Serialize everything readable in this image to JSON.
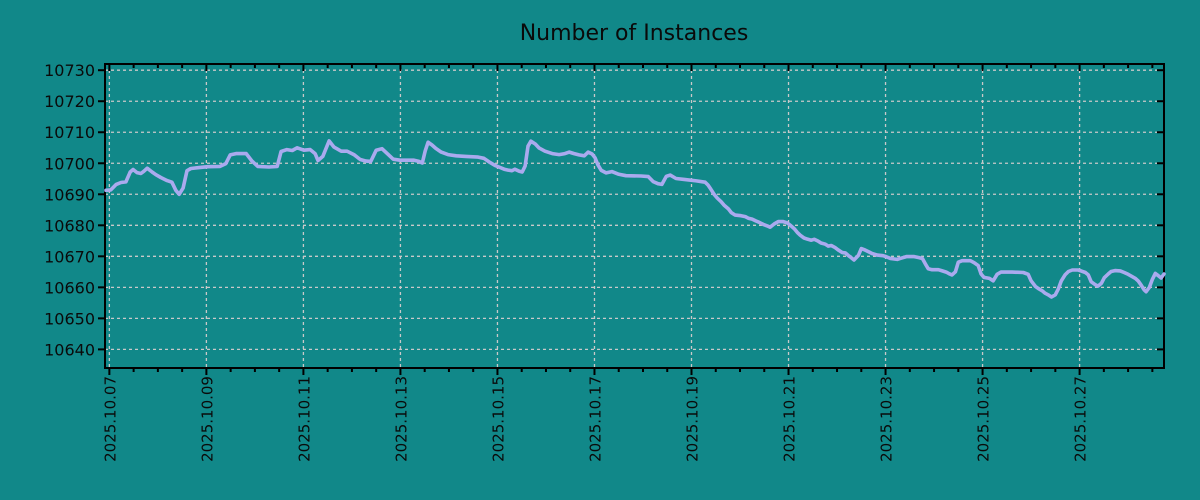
{
  "chart_data": {
    "type": "line",
    "title": "Number of Instances",
    "xlabel": "",
    "ylabel": "",
    "legend": "none",
    "grid": true,
    "background_color": "#118889",
    "line_color": "#aaaaee",
    "grid_color": "#c9c9c9",
    "axis_color": "#000000",
    "text_color": "#0a0a0a",
    "ylim": [
      10634,
      10732
    ],
    "yticks": [
      10640,
      10650,
      10660,
      10670,
      10680,
      10690,
      10700,
      10710,
      10720,
      10730
    ],
    "x_range_days": [
      0,
      21.83
    ],
    "x_minor_tick_interval_days": 0.5,
    "x_tick_positions_days": [
      0.09,
      2.09,
      4.09,
      6.09,
      8.09,
      10.09,
      12.09,
      14.09,
      16.09,
      18.09,
      20.09
    ],
    "x_tick_labels": [
      "2025.10.07",
      "2025.10.09",
      "2025.10.11",
      "2025.10.13",
      "2025.10.15",
      "2025.10.17",
      "2025.10.19",
      "2025.10.21",
      "2025.10.23",
      "2025.10.25",
      "2025.10.27"
    ],
    "series": [
      {
        "name": "instances",
        "points": [
          [
            0.02,
            10691.3
          ],
          [
            0.12,
            10691.4
          ],
          [
            0.23,
            10693.2
          ],
          [
            0.33,
            10693.8
          ],
          [
            0.43,
            10694.0
          ],
          [
            0.52,
            10697.2
          ],
          [
            0.58,
            10698.0
          ],
          [
            0.66,
            10697.0
          ],
          [
            0.74,
            10696.7
          ],
          [
            0.8,
            10697.4
          ],
          [
            0.87,
            10698.4
          ],
          [
            0.97,
            10697.2
          ],
          [
            1.05,
            10696.3
          ],
          [
            1.15,
            10695.4
          ],
          [
            1.28,
            10694.4
          ],
          [
            1.38,
            10693.9
          ],
          [
            1.46,
            10691.3
          ],
          [
            1.53,
            10690.0
          ],
          [
            1.61,
            10692.0
          ],
          [
            1.69,
            10697.6
          ],
          [
            1.77,
            10698.3
          ],
          [
            1.94,
            10698.6
          ],
          [
            2.12,
            10698.9
          ],
          [
            2.37,
            10699.0
          ],
          [
            2.49,
            10699.9
          ],
          [
            2.58,
            10702.7
          ],
          [
            2.7,
            10703.1
          ],
          [
            2.91,
            10703.1
          ],
          [
            3.03,
            10700.7
          ],
          [
            3.15,
            10699.0
          ],
          [
            3.38,
            10698.8
          ],
          [
            3.55,
            10699.0
          ],
          [
            3.63,
            10703.8
          ],
          [
            3.75,
            10704.4
          ],
          [
            3.86,
            10704.1
          ],
          [
            3.96,
            10705.0
          ],
          [
            4.1,
            10704.2
          ],
          [
            4.23,
            10704.4
          ],
          [
            4.33,
            10703.1
          ],
          [
            4.39,
            10700.9
          ],
          [
            4.49,
            10702.2
          ],
          [
            4.62,
            10707.2
          ],
          [
            4.72,
            10705.2
          ],
          [
            4.87,
            10703.9
          ],
          [
            4.99,
            10703.9
          ],
          [
            5.13,
            10702.8
          ],
          [
            5.26,
            10701.2
          ],
          [
            5.38,
            10700.7
          ],
          [
            5.48,
            10700.6
          ],
          [
            5.59,
            10704.2
          ],
          [
            5.71,
            10704.7
          ],
          [
            5.84,
            10702.8
          ],
          [
            5.94,
            10701.3
          ],
          [
            6.08,
            10701.0
          ],
          [
            6.37,
            10701.0
          ],
          [
            6.47,
            10700.6
          ],
          [
            6.54,
            10700.1
          ],
          [
            6.6,
            10704.0
          ],
          [
            6.66,
            10706.8
          ],
          [
            6.74,
            10705.9
          ],
          [
            6.82,
            10704.8
          ],
          [
            6.93,
            10703.6
          ],
          [
            7.07,
            10702.8
          ],
          [
            7.24,
            10702.4
          ],
          [
            7.44,
            10702.2
          ],
          [
            7.69,
            10702.0
          ],
          [
            7.81,
            10701.6
          ],
          [
            7.94,
            10700.2
          ],
          [
            8.04,
            10699.3
          ],
          [
            8.12,
            10698.8
          ],
          [
            8.23,
            10698.1
          ],
          [
            8.31,
            10697.8
          ],
          [
            8.39,
            10697.6
          ],
          [
            8.45,
            10698.1
          ],
          [
            8.54,
            10697.4
          ],
          [
            8.6,
            10697.2
          ],
          [
            8.66,
            10699.1
          ],
          [
            8.72,
            10705.5
          ],
          [
            8.78,
            10707.1
          ],
          [
            8.87,
            10706.2
          ],
          [
            8.95,
            10704.9
          ],
          [
            9.07,
            10703.9
          ],
          [
            9.22,
            10703.1
          ],
          [
            9.36,
            10702.8
          ],
          [
            9.48,
            10703.1
          ],
          [
            9.57,
            10703.6
          ],
          [
            9.67,
            10703.1
          ],
          [
            9.77,
            10702.7
          ],
          [
            9.88,
            10702.4
          ],
          [
            9.96,
            10703.6
          ],
          [
            10.04,
            10703.0
          ],
          [
            10.1,
            10701.8
          ],
          [
            10.16,
            10699.5
          ],
          [
            10.23,
            10697.7
          ],
          [
            10.33,
            10696.9
          ],
          [
            10.45,
            10697.3
          ],
          [
            10.58,
            10696.5
          ],
          [
            10.74,
            10696.0
          ],
          [
            11.05,
            10695.9
          ],
          [
            11.2,
            10695.7
          ],
          [
            11.3,
            10694.1
          ],
          [
            11.4,
            10693.4
          ],
          [
            11.48,
            10693.2
          ],
          [
            11.57,
            10695.8
          ],
          [
            11.65,
            10696.2
          ],
          [
            11.77,
            10695.1
          ],
          [
            11.94,
            10694.8
          ],
          [
            12.19,
            10694.3
          ],
          [
            12.37,
            10693.9
          ],
          [
            12.43,
            10693.0
          ],
          [
            12.49,
            10691.6
          ],
          [
            12.56,
            10689.9
          ],
          [
            12.62,
            10688.8
          ],
          [
            12.7,
            10687.6
          ],
          [
            12.76,
            10686.5
          ],
          [
            12.85,
            10685.3
          ],
          [
            12.91,
            10684.1
          ],
          [
            12.99,
            10683.3
          ],
          [
            13.11,
            10683.1
          ],
          [
            13.2,
            10682.8
          ],
          [
            13.26,
            10682.3
          ],
          [
            13.34,
            10682.0
          ],
          [
            13.42,
            10681.4
          ],
          [
            13.48,
            10681.0
          ],
          [
            13.57,
            10680.3
          ],
          [
            13.65,
            10679.8
          ],
          [
            13.71,
            10679.4
          ],
          [
            13.79,
            10680.4
          ],
          [
            13.88,
            10681.2
          ],
          [
            13.98,
            10681.2
          ],
          [
            14.06,
            10680.8
          ],
          [
            14.12,
            10680.1
          ],
          [
            14.21,
            10678.9
          ],
          [
            14.27,
            10677.7
          ],
          [
            14.33,
            10676.8
          ],
          [
            14.41,
            10675.9
          ],
          [
            14.49,
            10675.5
          ],
          [
            14.56,
            10675.2
          ],
          [
            14.62,
            10675.5
          ],
          [
            14.7,
            10674.9
          ],
          [
            14.76,
            10674.3
          ],
          [
            14.85,
            10673.9
          ],
          [
            14.91,
            10673.3
          ],
          [
            14.97,
            10673.5
          ],
          [
            15.05,
            10672.8
          ],
          [
            15.11,
            10672.1
          ],
          [
            15.2,
            10671.2
          ],
          [
            15.26,
            10671.1
          ],
          [
            15.32,
            10670.3
          ],
          [
            15.38,
            10669.6
          ],
          [
            15.44,
            10668.8
          ],
          [
            15.53,
            10670.3
          ],
          [
            15.59,
            10672.5
          ],
          [
            15.67,
            10672.0
          ],
          [
            15.75,
            10671.4
          ],
          [
            15.81,
            10670.9
          ],
          [
            15.92,
            10670.4
          ],
          [
            16.04,
            10670.2
          ],
          [
            16.1,
            10669.9
          ],
          [
            16.19,
            10669.3
          ],
          [
            16.33,
            10669.0
          ],
          [
            16.41,
            10669.4
          ],
          [
            16.52,
            10669.9
          ],
          [
            16.68,
            10669.9
          ],
          [
            16.78,
            10669.6
          ],
          [
            16.85,
            10669.3
          ],
          [
            16.91,
            10667.6
          ],
          [
            16.97,
            10666.0
          ],
          [
            17.05,
            10665.7
          ],
          [
            17.18,
            10665.7
          ],
          [
            17.26,
            10665.3
          ],
          [
            17.34,
            10664.9
          ],
          [
            17.4,
            10664.4
          ],
          [
            17.46,
            10664.0
          ],
          [
            17.53,
            10665.0
          ],
          [
            17.59,
            10668.1
          ],
          [
            17.67,
            10668.6
          ],
          [
            17.84,
            10668.6
          ],
          [
            17.92,
            10667.9
          ],
          [
            18.0,
            10667.0
          ],
          [
            18.06,
            10664.3
          ],
          [
            18.12,
            10663.2
          ],
          [
            18.23,
            10662.9
          ],
          [
            18.31,
            10662.1
          ],
          [
            18.39,
            10664.2
          ],
          [
            18.47,
            10664.9
          ],
          [
            18.7,
            10664.9
          ],
          [
            18.93,
            10664.8
          ],
          [
            19.03,
            10664.2
          ],
          [
            19.09,
            10662.1
          ],
          [
            19.18,
            10660.3
          ],
          [
            19.24,
            10659.6
          ],
          [
            19.32,
            10658.9
          ],
          [
            19.38,
            10658.1
          ],
          [
            19.44,
            10657.6
          ],
          [
            19.51,
            10656.9
          ],
          [
            19.59,
            10657.6
          ],
          [
            19.65,
            10659.4
          ],
          [
            19.71,
            10662.0
          ],
          [
            19.79,
            10664.0
          ],
          [
            19.86,
            10665.1
          ],
          [
            19.94,
            10665.6
          ],
          [
            20.06,
            10665.6
          ],
          [
            20.12,
            10665.3
          ],
          [
            20.21,
            10664.8
          ],
          [
            20.27,
            10664.0
          ],
          [
            20.33,
            10661.8
          ],
          [
            20.41,
            10660.9
          ],
          [
            20.47,
            10660.4
          ],
          [
            20.54,
            10661.3
          ],
          [
            20.6,
            10663.1
          ],
          [
            20.68,
            10664.3
          ],
          [
            20.74,
            10665.1
          ],
          [
            20.82,
            10665.4
          ],
          [
            20.93,
            10665.3
          ],
          [
            21.01,
            10664.8
          ],
          [
            21.09,
            10664.2
          ],
          [
            21.15,
            10663.7
          ],
          [
            21.24,
            10662.9
          ],
          [
            21.3,
            10662.0
          ],
          [
            21.36,
            10660.7
          ],
          [
            21.42,
            10659.2
          ],
          [
            21.46,
            10658.6
          ],
          [
            21.53,
            10660.0
          ],
          [
            21.59,
            10662.6
          ],
          [
            21.65,
            10664.5
          ],
          [
            21.71,
            10663.8
          ],
          [
            21.77,
            10663.0
          ],
          [
            21.83,
            10664.3
          ]
        ]
      }
    ]
  }
}
